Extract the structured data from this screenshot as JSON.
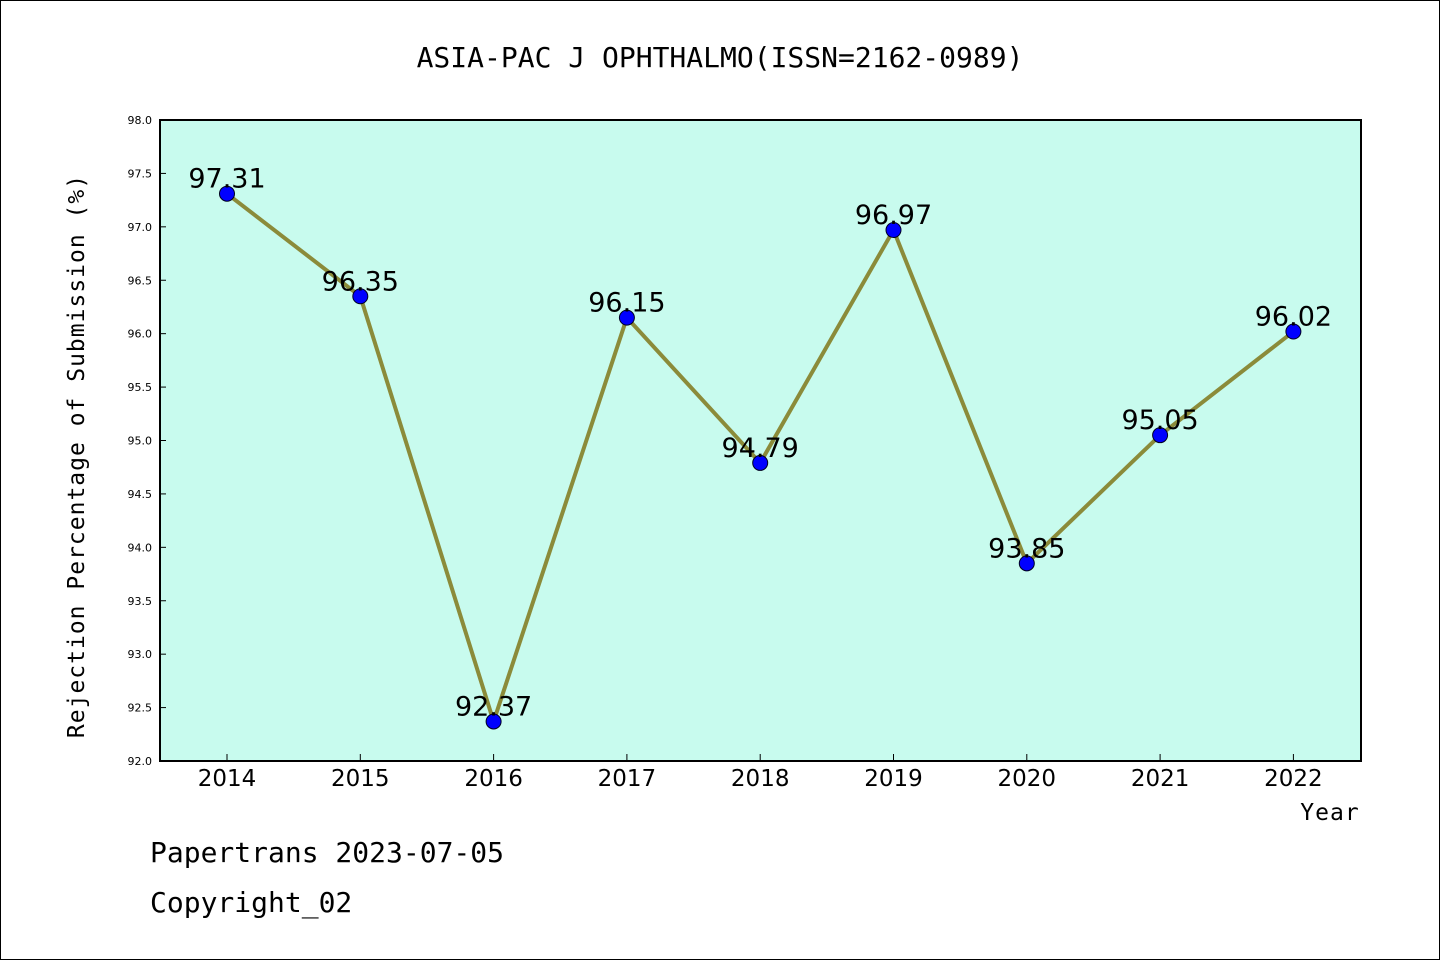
{
  "chart_data": {
    "type": "line",
    "title": "ASIA-PAC J OPHTHALMO(ISSN=2162-0989)",
    "xlabel": "Year",
    "ylabel": "Rejection Percentage of Submission (%)",
    "categories": [
      "2014",
      "2015",
      "2016",
      "2017",
      "2018",
      "2019",
      "2020",
      "2021",
      "2022"
    ],
    "series": [
      {
        "values": [
          97.31,
          96.35,
          92.37,
          96.15,
          94.79,
          96.97,
          93.85,
          95.05,
          96.02
        ]
      }
    ],
    "data_labels": [
      "97.31",
      "96.35",
      "92.37",
      "96.15",
      "94.79",
      "96.97",
      "93.85",
      "95.05",
      "96.02"
    ],
    "ylim": [
      92.0,
      98.0
    ],
    "yticks": [
      "92.0",
      "92.5",
      "93.0",
      "93.5",
      "94.0",
      "94.5",
      "95.0",
      "95.5",
      "96.0",
      "96.5",
      "97.0",
      "97.5",
      "98.0"
    ],
    "grid": false,
    "colors": {
      "plot_background": "#c8fbee",
      "line": "#8b8b3a",
      "marker": "#0000ff"
    }
  },
  "footer": {
    "line1": "Papertrans 2023-07-05",
    "line2": "Copyright_02"
  }
}
